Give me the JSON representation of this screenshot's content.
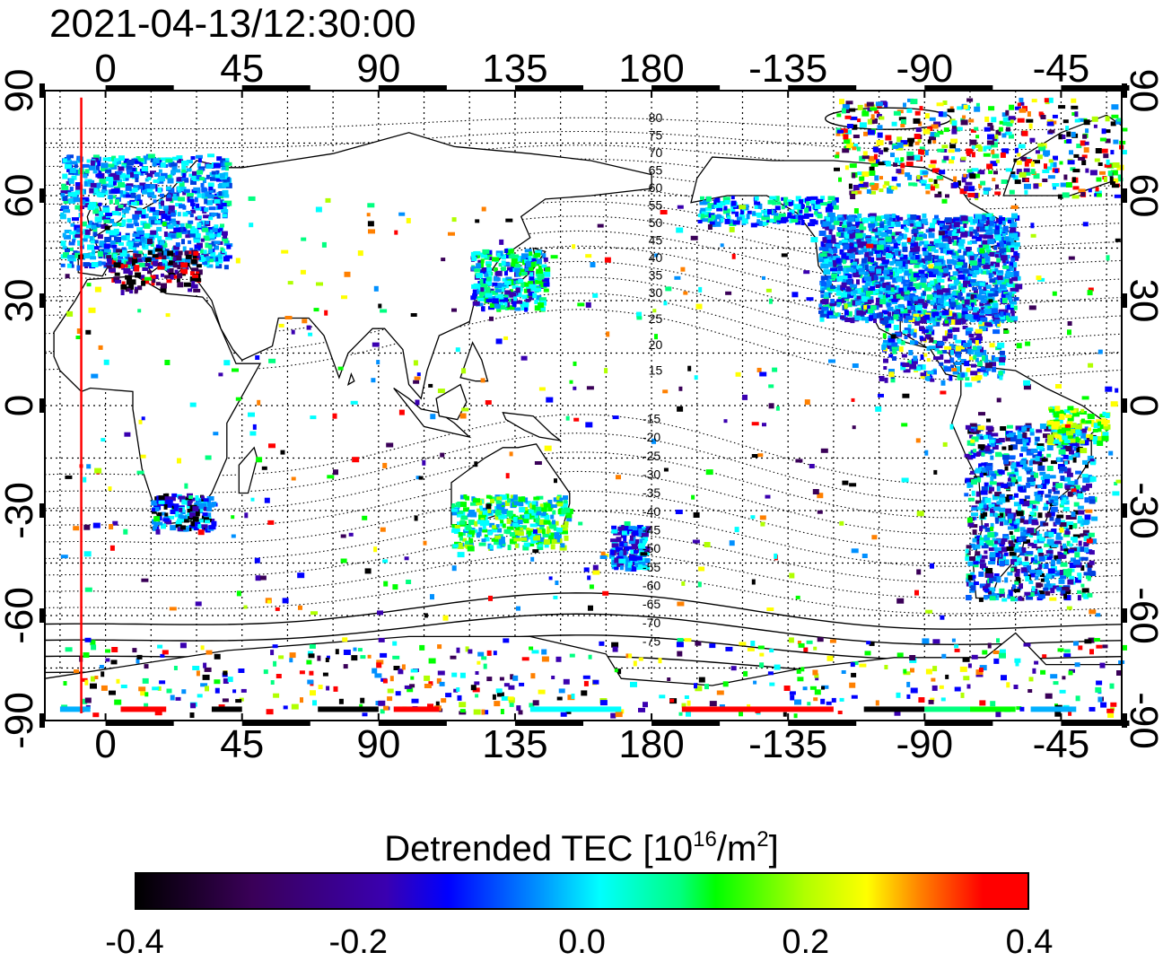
{
  "title": "2021-04-13/12:30:00",
  "x_ticks": [
    {
      "label": "0",
      "lon": 0
    },
    {
      "label": "45",
      "lon": 45
    },
    {
      "label": "90",
      "lon": 90
    },
    {
      "label": "135",
      "lon": 135
    },
    {
      "label": "180",
      "lon": 180
    },
    {
      "label": "-135",
      "lon": 225
    },
    {
      "label": "-90",
      "lon": 270
    },
    {
      "label": "-45",
      "lon": 315
    }
  ],
  "y_ticks": [
    {
      "label": "90",
      "lat": 90
    },
    {
      "label": "60",
      "lat": 60
    },
    {
      "label": "30",
      "lat": 30
    },
    {
      "label": "0",
      "lat": 0
    },
    {
      "label": "-30",
      "lat": -30
    },
    {
      "label": "-60",
      "lat": -60
    },
    {
      "label": "-90",
      "lat": -90
    }
  ],
  "map": {
    "lon_range": [
      -20,
      335
    ],
    "lat_range": [
      -90,
      90
    ],
    "grid_spacing_lon": 15,
    "grid_spacing_lat": 15,
    "marker_line_lon": -8,
    "marker_line_color": "#ff0000",
    "magnetic_lat_labels_north": [
      "80",
      "75",
      "70",
      "65",
      "60",
      "55",
      "50",
      "45",
      "40",
      "35",
      "30",
      "25",
      "20",
      "15"
    ],
    "magnetic_lat_labels_south": [
      "-15",
      "-20",
      "-25",
      "-30",
      "-35",
      "-40",
      "-45",
      "-50",
      "-55",
      "-60",
      "-65",
      "-70",
      "-75"
    ]
  },
  "colorbar": {
    "label": "Detrended TEC  [10",
    "label_sup": "16",
    "label_mid": "/m",
    "label_sup2": "2",
    "label_end": "]",
    "ticks": [
      "-0.4",
      "-0.2",
      "0.0",
      "0.2",
      "0.4"
    ],
    "range": [
      -0.4,
      0.4
    ]
  },
  "colors": {
    "scale": [
      "#000000",
      "#3a0058",
      "#3a00b0",
      "#0000ff",
      "#0090ff",
      "#00ffff",
      "#00ff80",
      "#00ff00",
      "#b0ff00",
      "#ffff00",
      "#ff8000",
      "#ff0000"
    ]
  }
}
